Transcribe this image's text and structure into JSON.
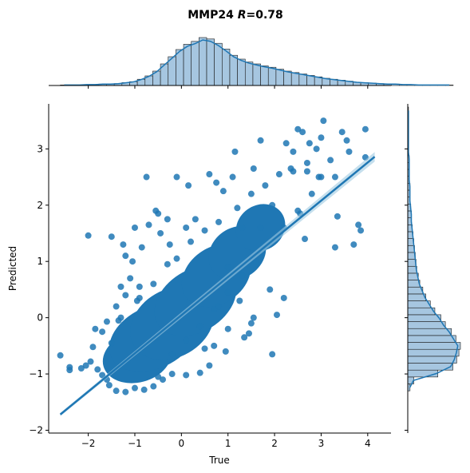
{
  "title": {
    "gene": "MMP24",
    "r_symbol": "R",
    "r_value": "=0.78"
  },
  "colors": {
    "scatter": "#1f77b4",
    "hist_fill": "#a6c6e0",
    "hist_edge": "#1a1a1a",
    "kde": "#1f77b4",
    "axis": "#000000"
  },
  "chart_data": {
    "type": "scatter",
    "xlabel": "True",
    "ylabel": "Predicted",
    "xlim": [
      -2.85,
      4.5
    ],
    "ylim": [
      -2.05,
      3.8
    ],
    "xticks": [
      -2,
      -1,
      0,
      1,
      2,
      3,
      4
    ],
    "yticks": [
      -2,
      -1,
      0,
      1,
      2,
      3
    ],
    "regression": {
      "x": [
        -2.6,
        4.15
      ],
      "y": [
        -1.72,
        2.86
      ]
    },
    "points": [
      [
        -2.6,
        -0.67
      ],
      [
        -2.4,
        -0.88
      ],
      [
        -2.4,
        -0.93
      ],
      [
        -2.05,
        -0.85
      ],
      [
        -2.0,
        1.46
      ],
      [
        -1.9,
        -0.52
      ],
      [
        -1.85,
        -0.2
      ],
      [
        -1.7,
        -0.25
      ],
      [
        -1.6,
        -0.07
      ],
      [
        -1.5,
        1.44
      ],
      [
        -1.4,
        0.2
      ],
      [
        -1.3,
        0.0
      ],
      [
        -1.3,
        0.55
      ],
      [
        -1.25,
        1.3
      ],
      [
        -1.2,
        1.1
      ],
      [
        -1.1,
        0.7
      ],
      [
        -1.05,
        1.0
      ],
      [
        -1.0,
        1.6
      ],
      [
        -0.95,
        0.3
      ],
      [
        -0.9,
        0.55
      ],
      [
        -0.85,
        1.25
      ],
      [
        -0.75,
        2.5
      ],
      [
        -0.7,
        1.65
      ],
      [
        -0.55,
        1.9
      ],
      [
        -0.5,
        1.85
      ],
      [
        -0.45,
        1.5
      ],
      [
        -0.3,
        1.75
      ],
      [
        -0.25,
        1.3
      ],
      [
        -0.1,
        2.5
      ],
      [
        0.1,
        1.6
      ],
      [
        0.15,
        2.35
      ],
      [
        0.3,
        1.75
      ],
      [
        0.6,
        2.55
      ],
      [
        0.75,
        2.4
      ],
      [
        0.9,
        2.25
      ],
      [
        1.1,
        2.5
      ],
      [
        1.15,
        2.95
      ],
      [
        1.3,
        1.6
      ],
      [
        1.55,
        2.65
      ],
      [
        1.7,
        3.15
      ],
      [
        1.95,
        2.0
      ],
      [
        2.25,
        3.1
      ],
      [
        2.35,
        2.65
      ],
      [
        2.4,
        2.95
      ],
      [
        2.5,
        3.35
      ],
      [
        2.6,
        3.3
      ],
      [
        2.7,
        2.6
      ],
      [
        2.75,
        3.1
      ],
      [
        2.9,
        3.0
      ],
      [
        2.95,
        2.5
      ],
      [
        3.0,
        3.2
      ],
      [
        3.05,
        3.5
      ],
      [
        3.2,
        2.8
      ],
      [
        3.3,
        2.5
      ],
      [
        3.35,
        1.8
      ],
      [
        3.45,
        3.3
      ],
      [
        3.55,
        3.15
      ],
      [
        3.6,
        2.95
      ],
      [
        3.8,
        1.65
      ],
      [
        3.85,
        1.55
      ],
      [
        3.95,
        3.35
      ],
      [
        3.95,
        2.85
      ],
      [
        3.7,
        1.3
      ],
      [
        3.3,
        1.25
      ],
      [
        2.65,
        1.4
      ],
      [
        2.55,
        1.85
      ],
      [
        2.2,
        0.35
      ],
      [
        2.05,
        0.05
      ],
      [
        1.9,
        0.5
      ],
      [
        1.55,
        0.0
      ],
      [
        1.5,
        -0.1
      ],
      [
        1.45,
        -0.28
      ],
      [
        1.25,
        0.3
      ],
      [
        1.35,
        -0.35
      ],
      [
        1.0,
        -0.2
      ],
      [
        0.95,
        -0.6
      ],
      [
        0.7,
        -0.5
      ],
      [
        0.5,
        -0.55
      ],
      [
        1.95,
        -0.65
      ],
      [
        1.0,
        0.9
      ],
      [
        0.8,
        0.2
      ],
      [
        1.7,
        1.6
      ],
      [
        -2.15,
        -0.9
      ],
      [
        -1.95,
        -0.78
      ],
      [
        -1.8,
        -0.92
      ],
      [
        -1.7,
        -1.02
      ],
      [
        -1.6,
        -1.1
      ],
      [
        -1.55,
        -1.2
      ],
      [
        -1.4,
        -1.3
      ],
      [
        -1.2,
        -1.32
      ],
      [
        -1.0,
        -1.25
      ],
      [
        -0.8,
        -1.28
      ],
      [
        -0.6,
        -1.22
      ],
      [
        -0.4,
        -1.1
      ],
      [
        -0.2,
        -1.0
      ],
      [
        0.1,
        -1.02
      ],
      [
        0.4,
        -0.98
      ],
      [
        0.6,
        -0.85
      ],
      [
        -0.5,
        -1.05
      ],
      [
        -1.5,
        -0.45
      ],
      [
        -1.35,
        -0.05
      ],
      [
        -1.2,
        0.4
      ],
      [
        -0.9,
        0.35
      ],
      [
        -0.6,
        0.6
      ],
      [
        -0.3,
        0.95
      ],
      [
        -0.1,
        1.05
      ],
      [
        0.2,
        1.35
      ],
      [
        0.5,
        1.55
      ],
      [
        0.8,
        1.7
      ],
      [
        1.2,
        1.95
      ],
      [
        1.5,
        2.2
      ],
      [
        1.8,
        2.35
      ],
      [
        2.1,
        2.55
      ],
      [
        2.4,
        2.6
      ],
      [
        2.7,
        2.75
      ],
      [
        3.0,
        2.5
      ],
      [
        2.8,
        2.2
      ],
      [
        2.5,
        1.9
      ],
      [
        2.2,
        1.6
      ],
      [
        1.9,
        1.3
      ],
      [
        1.6,
        1.0
      ],
      [
        1.3,
        0.75
      ],
      [
        1.0,
        0.45
      ],
      [
        0.7,
        0.15
      ],
      [
        0.4,
        -0.15
      ],
      [
        0.1,
        -0.4
      ],
      [
        -0.2,
        -0.65
      ]
    ],
    "blob": [
      {
        "cx": -0.95,
        "cy": -0.7,
        "rx": 0.75,
        "ry": 0.45,
        "rot": 15
      },
      {
        "cx": -0.6,
        "cy": -0.35,
        "rx": 1.0,
        "ry": 0.55,
        "rot": 25
      },
      {
        "cx": -0.2,
        "cy": -0.1,
        "rx": 0.95,
        "ry": 0.6,
        "rot": 30
      },
      {
        "cx": 0.3,
        "cy": 0.3,
        "rx": 0.95,
        "ry": 0.55,
        "rot": 32
      },
      {
        "cx": 0.75,
        "cy": 0.75,
        "rx": 0.8,
        "ry": 0.5,
        "rot": 35
      },
      {
        "cx": 1.2,
        "cy": 1.15,
        "rx": 0.65,
        "ry": 0.45,
        "rot": 35
      },
      {
        "cx": 1.7,
        "cy": 1.6,
        "rx": 0.55,
        "ry": 0.4,
        "rot": 35
      }
    ],
    "marginal_x_hist": {
      "edges_start": -2.6,
      "bin_width": 0.1654,
      "counts": [
        1,
        1,
        1,
        2,
        2,
        3,
        3,
        4,
        6,
        8,
        13,
        20,
        30,
        45,
        60,
        75,
        86,
        92,
        100,
        97,
        88,
        76,
        63,
        55,
        49,
        45,
        41,
        38,
        34,
        30,
        27,
        24,
        21,
        18,
        15,
        13,
        11,
        9,
        7,
        6,
        5,
        4,
        3,
        3,
        2,
        2,
        1,
        1,
        1,
        1,
        1
      ]
    },
    "marginal_y_hist": {
      "edges_start": -1.3,
      "bin_width": 0.123,
      "counts": [
        3,
        8,
        40,
        60,
        65,
        68,
        70,
        64,
        58,
        50,
        44,
        36,
        30,
        24,
        20,
        16,
        14,
        12,
        11,
        10,
        9,
        8,
        7,
        6,
        5,
        5,
        4,
        3,
        3,
        3,
        2,
        2,
        2,
        2,
        1,
        1,
        1,
        1,
        1,
        1,
        1
      ]
    }
  }
}
